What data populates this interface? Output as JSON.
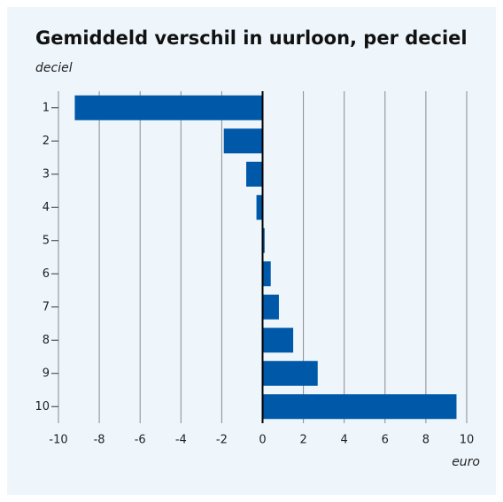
{
  "chart_data": {
    "type": "bar",
    "orientation": "horizontal",
    "title": "Gemiddeld verschil in uurloon, per deciel",
    "y_label": "deciel",
    "x_label": "euro",
    "categories": [
      "1",
      "2",
      "3",
      "4",
      "5",
      "6",
      "7",
      "8",
      "9",
      "10"
    ],
    "values": [
      -9.2,
      -1.9,
      -0.8,
      -0.3,
      0.1,
      0.4,
      0.8,
      1.5,
      2.7,
      9.5
    ],
    "color": "#0058a8",
    "xlim": [
      -10,
      10
    ],
    "xticks": [
      -10,
      -8,
      -6,
      -4,
      -2,
      0,
      2,
      4,
      6,
      8,
      10
    ],
    "grid": true
  }
}
